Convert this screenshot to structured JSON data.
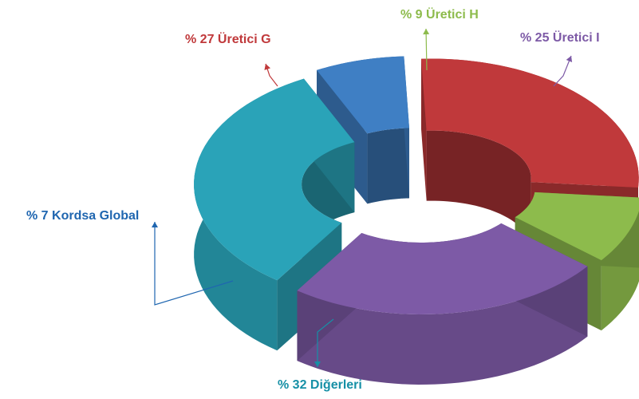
{
  "chart_data": {
    "type": "pie",
    "variant": "3d-donut",
    "slices": [
      {
        "name": "Üretici G",
        "value": 27,
        "label": "% 27 Üretici G",
        "color": "#c0393b"
      },
      {
        "name": "Üretici H",
        "value": 9,
        "label": "% 9 Üretici H",
        "color": "#8dbb4c"
      },
      {
        "name": "Üretici I",
        "value": 25,
        "label": "% 25 Üretici I",
        "color": "#7d5aa6"
      },
      {
        "name": "Diğerleri",
        "value": 32,
        "label": "% 32 Diğerleri",
        "color": "#2aa3b8"
      },
      {
        "name": "Kordsa Global",
        "value": 7,
        "label": "% 7 Kordsa Global",
        "color": "#3f7fc4"
      }
    ]
  }
}
